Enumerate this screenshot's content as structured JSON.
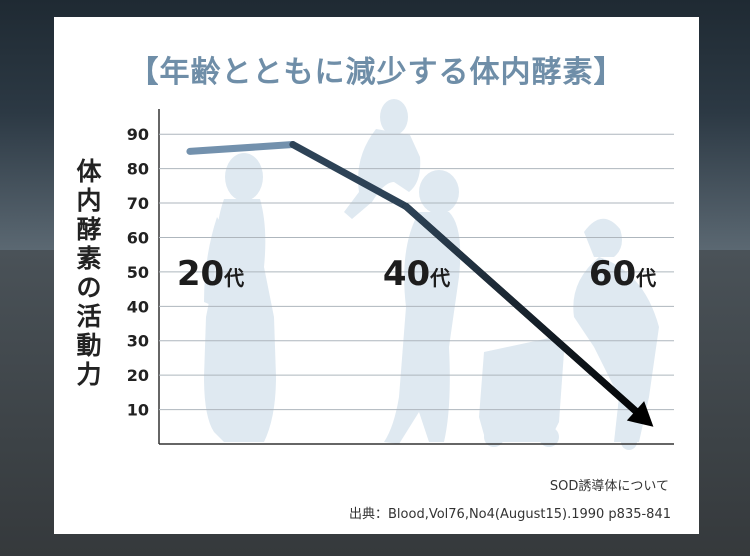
{
  "chart_data": {
    "type": "line",
    "title": "【年齢とともに減少する体内酵素】",
    "ylabel": "体内酵素の活動力",
    "yticks": [
      10,
      20,
      30,
      40,
      50,
      60,
      70,
      80,
      90
    ],
    "ylim": [
      0,
      95
    ],
    "grid": true,
    "x_domain": [
      15,
      65
    ],
    "age_labels": [
      {
        "age": 20,
        "number": "20",
        "suffix": "代"
      },
      {
        "age": 40,
        "number": "40",
        "suffix": "代"
      },
      {
        "age": 60,
        "number": "60",
        "suffix": "代"
      }
    ],
    "series": [
      {
        "x": [
          18,
          28,
          39,
          63
        ],
        "y": [
          85,
          87,
          69,
          5
        ]
      }
    ],
    "line_colors": [
      "#9fb9d0",
      "#7391ad",
      "#2d4256",
      "#000000"
    ]
  },
  "note": "SOD誘導体について",
  "source": "出典：Blood,Vol76,No4(August15).1990 p835-841"
}
